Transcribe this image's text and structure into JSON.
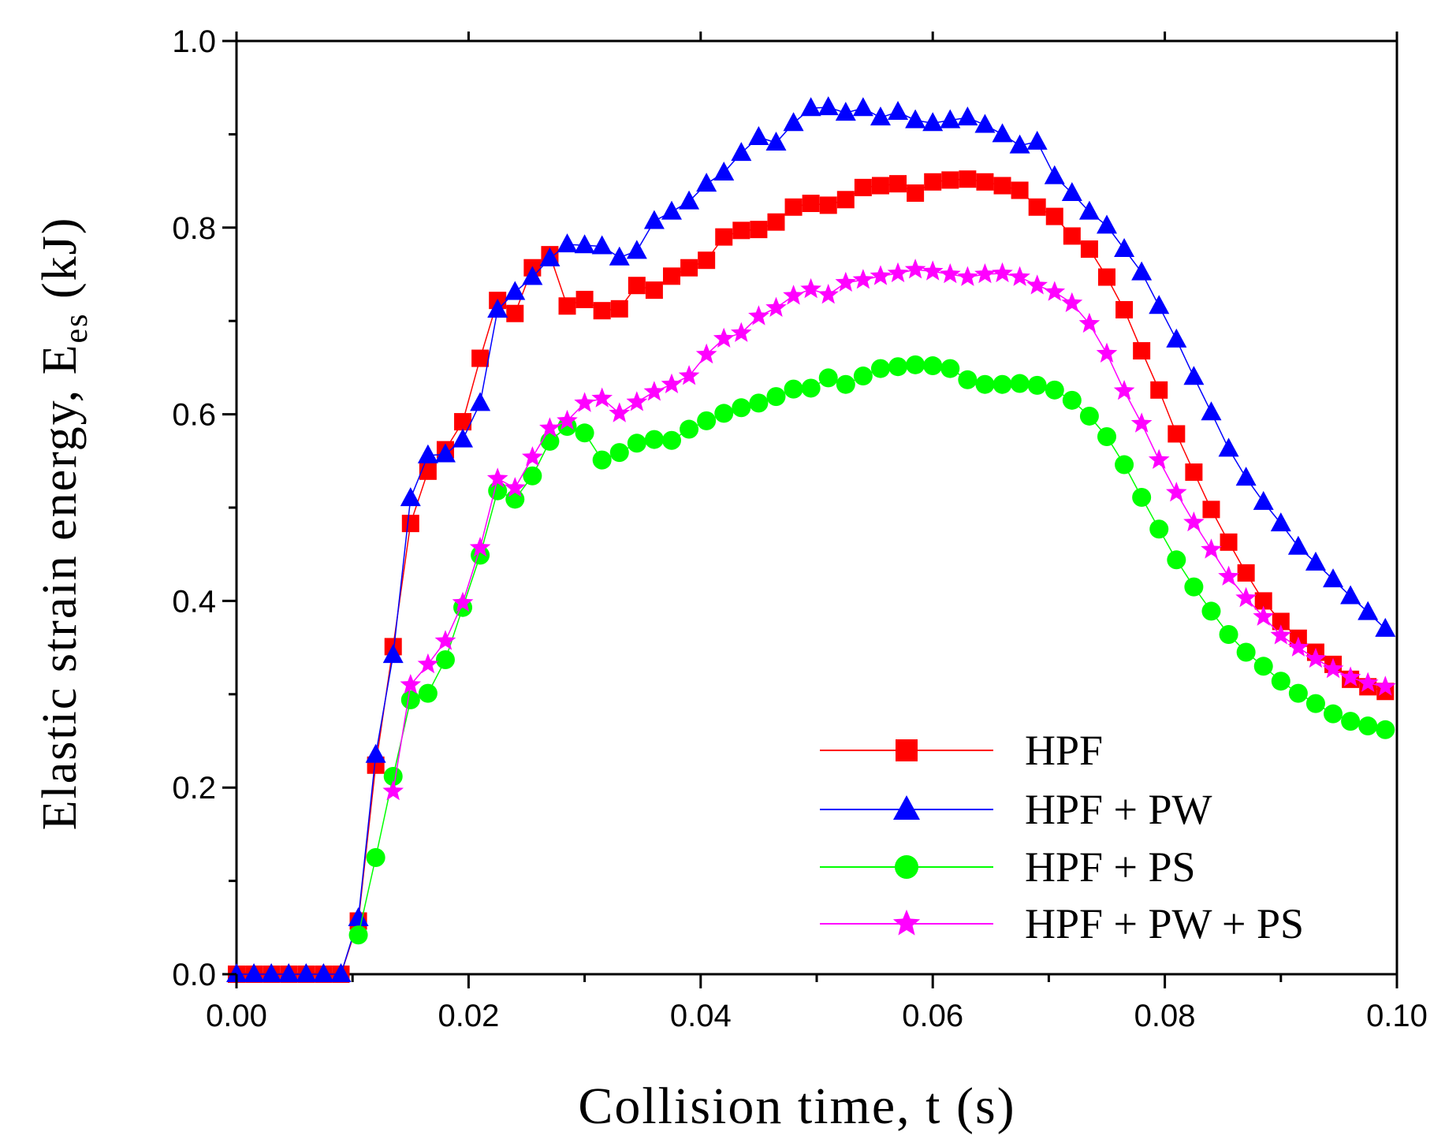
{
  "chart_data": {
    "type": "line",
    "title": "",
    "xlabel": "Collision time, t (s)",
    "ylabel": {
      "main": "Elastic strain energy, E",
      "subscript": "es",
      "suffix": " (kJ)"
    },
    "xlim": [
      0,
      0.1
    ],
    "ylim": [
      0,
      1.0
    ],
    "x_ticks": [
      "0.00",
      "0.02",
      "0.04",
      "0.06",
      "0.08",
      "0.10"
    ],
    "y_ticks": [
      "0.0",
      "0.2",
      "0.4",
      "0.6",
      "0.8",
      "1.0"
    ],
    "grid": false,
    "legend_position": "bottom-right",
    "series": [
      {
        "name": "HPF",
        "color": "#ff0000",
        "marker": "square",
        "points": [
          [
            0.0,
            0.0
          ],
          [
            0.0015,
            0.0
          ],
          [
            0.003,
            0.0
          ],
          [
            0.0045,
            0.0
          ],
          [
            0.006,
            0.0
          ],
          [
            0.0075,
            0.0
          ],
          [
            0.009,
            0.0
          ],
          [
            0.0105,
            0.057
          ],
          [
            0.012,
            0.224
          ],
          [
            0.0135,
            0.351
          ],
          [
            0.015,
            0.483
          ],
          [
            0.0165,
            0.539
          ],
          [
            0.018,
            0.562
          ],
          [
            0.0195,
            0.592
          ],
          [
            0.021,
            0.66
          ],
          [
            0.0225,
            0.722
          ],
          [
            0.024,
            0.708
          ],
          [
            0.0255,
            0.757
          ],
          [
            0.027,
            0.771
          ],
          [
            0.0285,
            0.716
          ],
          [
            0.03,
            0.723
          ],
          [
            0.0315,
            0.711
          ],
          [
            0.033,
            0.713
          ],
          [
            0.0345,
            0.738
          ],
          [
            0.036,
            0.733
          ],
          [
            0.0375,
            0.748
          ],
          [
            0.039,
            0.757
          ],
          [
            0.0405,
            0.765
          ],
          [
            0.042,
            0.79
          ],
          [
            0.0435,
            0.797
          ],
          [
            0.045,
            0.798
          ],
          [
            0.0465,
            0.806
          ],
          [
            0.048,
            0.822
          ],
          [
            0.0495,
            0.826
          ],
          [
            0.051,
            0.824
          ],
          [
            0.0525,
            0.83
          ],
          [
            0.054,
            0.843
          ],
          [
            0.0555,
            0.845
          ],
          [
            0.057,
            0.847
          ],
          [
            0.0585,
            0.837
          ],
          [
            0.06,
            0.849
          ],
          [
            0.0615,
            0.851
          ],
          [
            0.063,
            0.852
          ],
          [
            0.0645,
            0.849
          ],
          [
            0.066,
            0.845
          ],
          [
            0.0675,
            0.84
          ],
          [
            0.069,
            0.822
          ],
          [
            0.0705,
            0.812
          ],
          [
            0.072,
            0.791
          ],
          [
            0.0735,
            0.777
          ],
          [
            0.075,
            0.747
          ],
          [
            0.0765,
            0.712
          ],
          [
            0.078,
            0.668
          ],
          [
            0.0795,
            0.626
          ],
          [
            0.081,
            0.579
          ],
          [
            0.0825,
            0.538
          ],
          [
            0.084,
            0.498
          ],
          [
            0.0855,
            0.463
          ],
          [
            0.087,
            0.43
          ],
          [
            0.0885,
            0.4
          ],
          [
            0.09,
            0.378
          ],
          [
            0.0915,
            0.36
          ],
          [
            0.093,
            0.345
          ],
          [
            0.0945,
            0.332
          ],
          [
            0.096,
            0.316
          ],
          [
            0.0975,
            0.308
          ],
          [
            0.099,
            0.303
          ]
        ]
      },
      {
        "name": "HPF + PW",
        "color": "#0000ff",
        "marker": "triangle",
        "points": [
          [
            0.0,
            0.0
          ],
          [
            0.0015,
            0.0
          ],
          [
            0.003,
            0.0
          ],
          [
            0.0045,
            0.0
          ],
          [
            0.006,
            0.0
          ],
          [
            0.0075,
            0.0
          ],
          [
            0.009,
            0.0
          ],
          [
            0.0105,
            0.06
          ],
          [
            0.012,
            0.235
          ],
          [
            0.0135,
            0.342
          ],
          [
            0.015,
            0.51
          ],
          [
            0.0165,
            0.556
          ],
          [
            0.018,
            0.557
          ],
          [
            0.0195,
            0.573
          ],
          [
            0.021,
            0.612
          ],
          [
            0.0225,
            0.712
          ],
          [
            0.024,
            0.731
          ],
          [
            0.0255,
            0.747
          ],
          [
            0.027,
            0.767
          ],
          [
            0.0285,
            0.782
          ],
          [
            0.03,
            0.781
          ],
          [
            0.0315,
            0.78
          ],
          [
            0.033,
            0.768
          ],
          [
            0.0345,
            0.775
          ],
          [
            0.036,
            0.807
          ],
          [
            0.0375,
            0.817
          ],
          [
            0.039,
            0.828
          ],
          [
            0.0405,
            0.847
          ],
          [
            0.042,
            0.859
          ],
          [
            0.0435,
            0.88
          ],
          [
            0.045,
            0.897
          ],
          [
            0.0465,
            0.891
          ],
          [
            0.048,
            0.912
          ],
          [
            0.0495,
            0.928
          ],
          [
            0.051,
            0.929
          ],
          [
            0.0525,
            0.923
          ],
          [
            0.054,
            0.928
          ],
          [
            0.0555,
            0.918
          ],
          [
            0.057,
            0.924
          ],
          [
            0.0585,
            0.915
          ],
          [
            0.06,
            0.912
          ],
          [
            0.0615,
            0.915
          ],
          [
            0.063,
            0.918
          ],
          [
            0.0645,
            0.91
          ],
          [
            0.066,
            0.9
          ],
          [
            0.0675,
            0.888
          ],
          [
            0.069,
            0.892
          ],
          [
            0.0705,
            0.855
          ],
          [
            0.072,
            0.837
          ],
          [
            0.0735,
            0.817
          ],
          [
            0.075,
            0.802
          ],
          [
            0.0765,
            0.777
          ],
          [
            0.078,
            0.752
          ],
          [
            0.0795,
            0.716
          ],
          [
            0.081,
            0.68
          ],
          [
            0.0825,
            0.64
          ],
          [
            0.084,
            0.602
          ],
          [
            0.0855,
            0.563
          ],
          [
            0.087,
            0.532
          ],
          [
            0.0885,
            0.506
          ],
          [
            0.09,
            0.483
          ],
          [
            0.0915,
            0.458
          ],
          [
            0.093,
            0.441
          ],
          [
            0.0945,
            0.423
          ],
          [
            0.096,
            0.405
          ],
          [
            0.0975,
            0.388
          ],
          [
            0.099,
            0.37
          ]
        ]
      },
      {
        "name": "HPF + PS",
        "color": "#00ff00",
        "marker": "circle",
        "points": [
          [
            0.0105,
            0.042
          ],
          [
            0.012,
            0.125
          ],
          [
            0.0135,
            0.212
          ],
          [
            0.015,
            0.294
          ],
          [
            0.0165,
            0.301
          ],
          [
            0.018,
            0.337
          ],
          [
            0.0195,
            0.393
          ],
          [
            0.021,
            0.449
          ],
          [
            0.0225,
            0.518
          ],
          [
            0.024,
            0.509
          ],
          [
            0.0255,
            0.534
          ],
          [
            0.027,
            0.571
          ],
          [
            0.0285,
            0.587
          ],
          [
            0.03,
            0.58
          ],
          [
            0.0315,
            0.551
          ],
          [
            0.033,
            0.559
          ],
          [
            0.0345,
            0.569
          ],
          [
            0.036,
            0.573
          ],
          [
            0.0375,
            0.572
          ],
          [
            0.039,
            0.584
          ],
          [
            0.0405,
            0.593
          ],
          [
            0.042,
            0.601
          ],
          [
            0.0435,
            0.607
          ],
          [
            0.045,
            0.612
          ],
          [
            0.0465,
            0.619
          ],
          [
            0.048,
            0.627
          ],
          [
            0.0495,
            0.628
          ],
          [
            0.051,
            0.639
          ],
          [
            0.0525,
            0.632
          ],
          [
            0.054,
            0.641
          ],
          [
            0.0555,
            0.649
          ],
          [
            0.057,
            0.651
          ],
          [
            0.0585,
            0.653
          ],
          [
            0.06,
            0.652
          ],
          [
            0.0615,
            0.649
          ],
          [
            0.063,
            0.637
          ],
          [
            0.0645,
            0.632
          ],
          [
            0.066,
            0.632
          ],
          [
            0.0675,
            0.633
          ],
          [
            0.069,
            0.631
          ],
          [
            0.0705,
            0.626
          ],
          [
            0.072,
            0.615
          ],
          [
            0.0735,
            0.598
          ],
          [
            0.075,
            0.576
          ],
          [
            0.0765,
            0.546
          ],
          [
            0.078,
            0.511
          ],
          [
            0.0795,
            0.477
          ],
          [
            0.081,
            0.444
          ],
          [
            0.0825,
            0.415
          ],
          [
            0.084,
            0.389
          ],
          [
            0.0855,
            0.364
          ],
          [
            0.087,
            0.345
          ],
          [
            0.0885,
            0.33
          ],
          [
            0.09,
            0.314
          ],
          [
            0.0915,
            0.301
          ],
          [
            0.093,
            0.29
          ],
          [
            0.0945,
            0.279
          ],
          [
            0.096,
            0.271
          ],
          [
            0.0975,
            0.266
          ],
          [
            0.099,
            0.262
          ]
        ]
      },
      {
        "name": "HPF + PW + PS",
        "color": "#ff00ff",
        "marker": "star",
        "points": [
          [
            0.0135,
            0.196
          ],
          [
            0.015,
            0.31
          ],
          [
            0.0165,
            0.332
          ],
          [
            0.018,
            0.357
          ],
          [
            0.0195,
            0.398
          ],
          [
            0.021,
            0.457
          ],
          [
            0.0225,
            0.531
          ],
          [
            0.024,
            0.521
          ],
          [
            0.0255,
            0.554
          ],
          [
            0.027,
            0.585
          ],
          [
            0.0285,
            0.593
          ],
          [
            0.03,
            0.612
          ],
          [
            0.0315,
            0.617
          ],
          [
            0.033,
            0.601
          ],
          [
            0.0345,
            0.613
          ],
          [
            0.036,
            0.624
          ],
          [
            0.0375,
            0.632
          ],
          [
            0.039,
            0.641
          ],
          [
            0.0405,
            0.664
          ],
          [
            0.042,
            0.681
          ],
          [
            0.0435,
            0.687
          ],
          [
            0.045,
            0.705
          ],
          [
            0.0465,
            0.714
          ],
          [
            0.048,
            0.727
          ],
          [
            0.0495,
            0.734
          ],
          [
            0.051,
            0.728
          ],
          [
            0.0525,
            0.741
          ],
          [
            0.054,
            0.744
          ],
          [
            0.0555,
            0.748
          ],
          [
            0.057,
            0.751
          ],
          [
            0.0585,
            0.755
          ],
          [
            0.06,
            0.753
          ],
          [
            0.0615,
            0.75
          ],
          [
            0.063,
            0.747
          ],
          [
            0.0645,
            0.75
          ],
          [
            0.066,
            0.751
          ],
          [
            0.0675,
            0.747
          ],
          [
            0.069,
            0.738
          ],
          [
            0.0705,
            0.731
          ],
          [
            0.072,
            0.719
          ],
          [
            0.0735,
            0.697
          ],
          [
            0.075,
            0.665
          ],
          [
            0.0765,
            0.625
          ],
          [
            0.078,
            0.59
          ],
          [
            0.0795,
            0.551
          ],
          [
            0.081,
            0.516
          ],
          [
            0.0825,
            0.484
          ],
          [
            0.084,
            0.455
          ],
          [
            0.0855,
            0.426
          ],
          [
            0.087,
            0.403
          ],
          [
            0.0885,
            0.383
          ],
          [
            0.09,
            0.363
          ],
          [
            0.0915,
            0.35
          ],
          [
            0.093,
            0.338
          ],
          [
            0.0945,
            0.327
          ],
          [
            0.096,
            0.318
          ],
          [
            0.0975,
            0.312
          ],
          [
            0.099,
            0.308
          ]
        ]
      }
    ]
  }
}
